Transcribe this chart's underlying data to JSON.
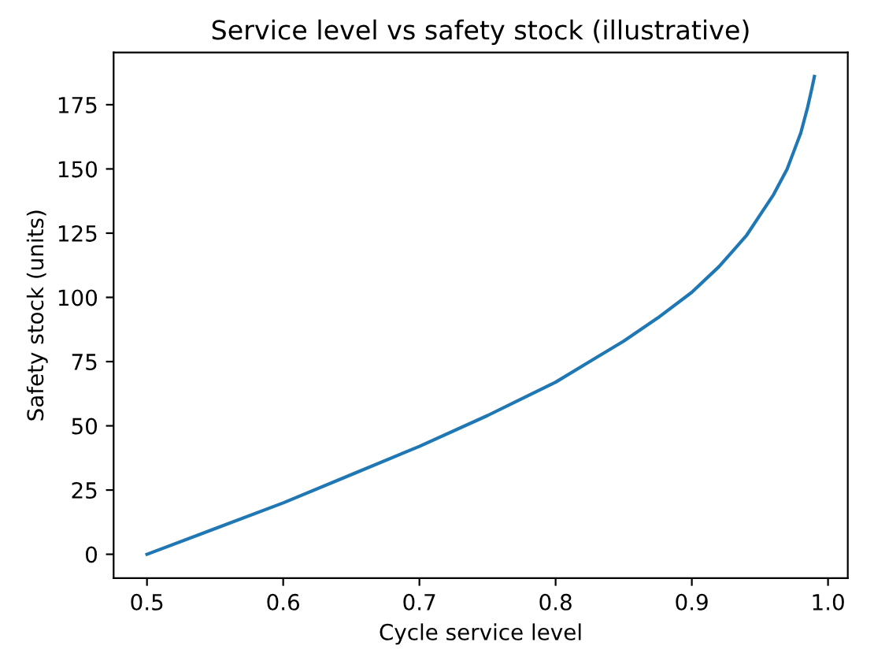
{
  "chart_data": {
    "type": "line",
    "title": "Service level vs safety stock (illustrative)",
    "xlabel": "Cycle service level",
    "ylabel": "Safety stock (units)",
    "x": [
      0.5,
      0.55,
      0.6,
      0.65,
      0.7,
      0.75,
      0.8,
      0.825,
      0.85,
      0.875,
      0.9,
      0.92,
      0.93,
      0.94,
      0.95,
      0.955,
      0.96,
      0.965,
      0.97,
      0.975,
      0.98,
      0.985,
      0.988,
      0.99
    ],
    "series": [
      {
        "color": "#1f77b4",
        "values": [
          0,
          10,
          20,
          31,
          42,
          54,
          67,
          75,
          83,
          92,
          102,
          112,
          118,
          124,
          132,
          136,
          140,
          145,
          150,
          157,
          164,
          174,
          181,
          186
        ]
      }
    ],
    "xlim": [
      0.4755,
      1.0145
    ],
    "ylim": [
      -9.3,
      195.3
    ],
    "xticks": [
      0.5,
      0.6,
      0.7,
      0.8,
      0.9,
      {
        "value": 1,
        "label": "1.0"
      }
    ],
    "yticks": [
      0,
      25,
      50,
      75,
      100,
      125,
      150,
      175
    ],
    "grid": false,
    "legend": false,
    "line_style": "solid",
    "marker": "none"
  }
}
